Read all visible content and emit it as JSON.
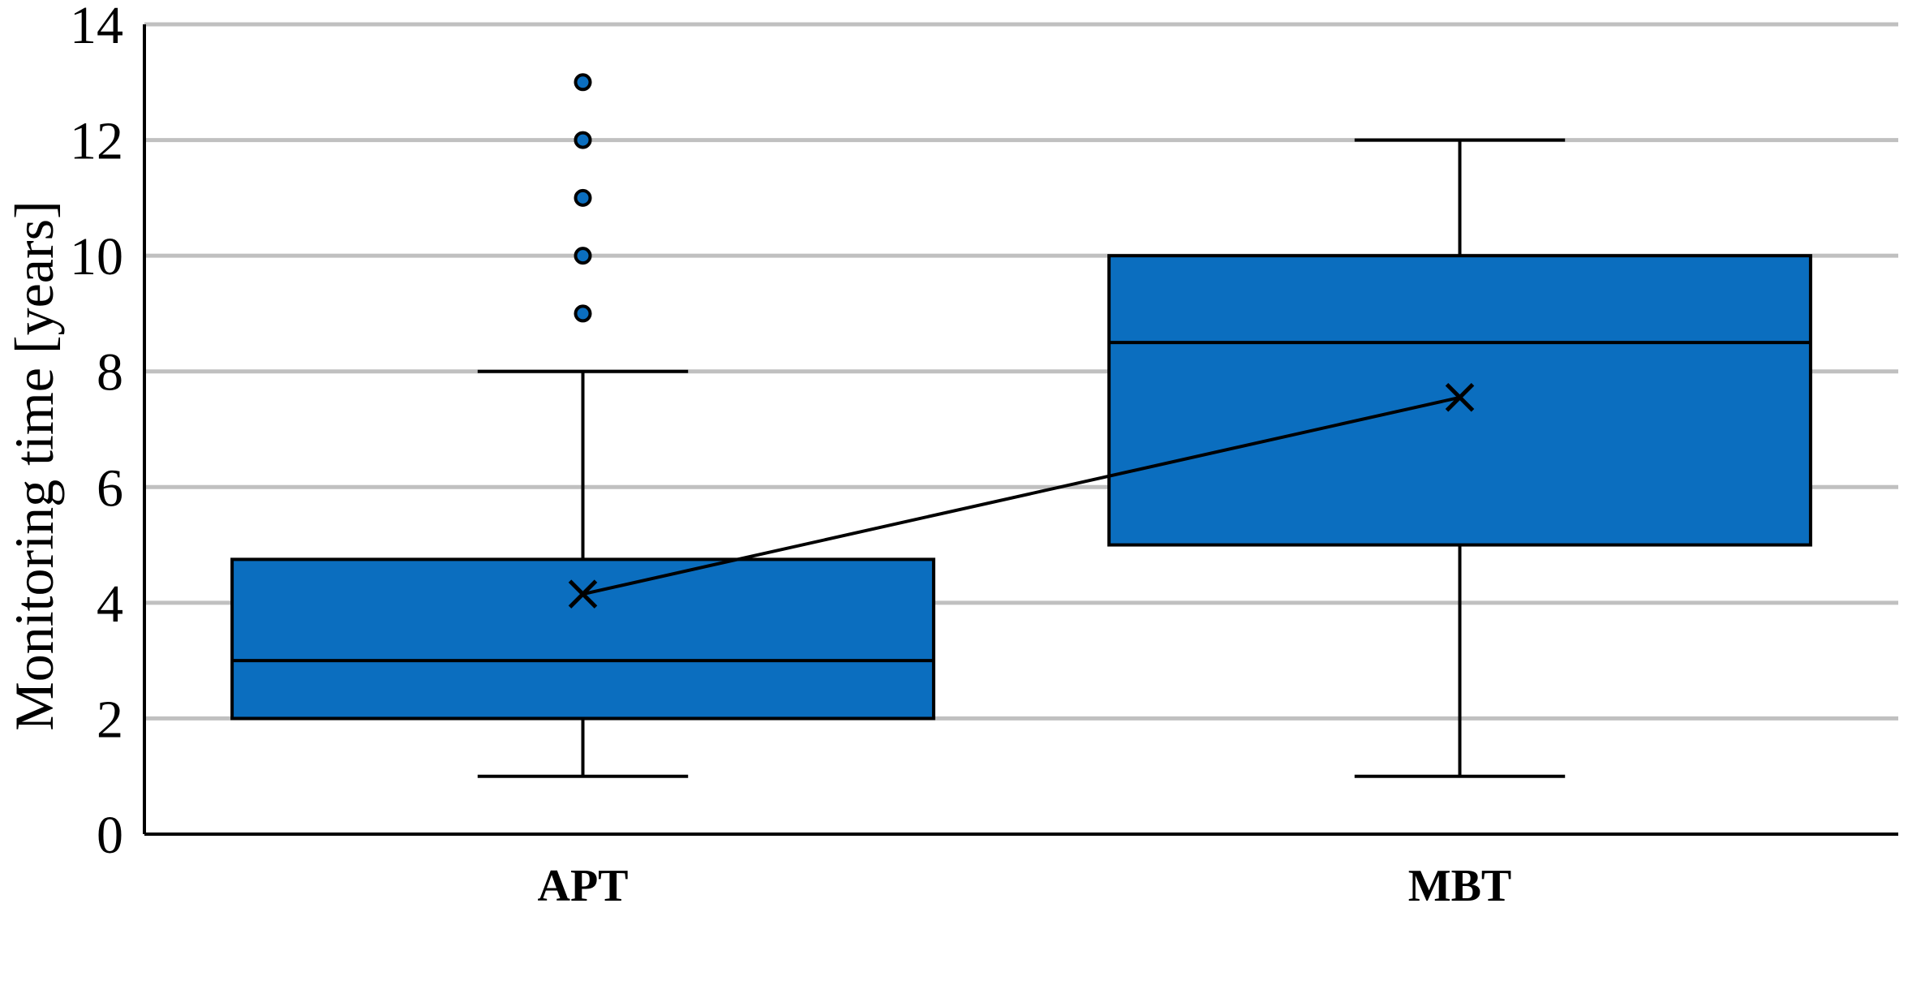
{
  "chart_data": {
    "type": "box",
    "ylabel": "Monitoring time [years]",
    "xlabel": "",
    "ylim": [
      0,
      14
    ],
    "yticks": [
      0,
      2,
      4,
      6,
      8,
      10,
      12,
      14
    ],
    "grid": true,
    "categories": [
      "APT",
      "MBT"
    ],
    "boxes": [
      {
        "category": "APT",
        "whisker_low": 1,
        "q1": 2,
        "median": 3,
        "q3": 4.75,
        "whisker_high": 8,
        "mean": 4.15,
        "outliers": [
          9,
          10,
          11,
          12,
          13
        ]
      },
      {
        "category": "MBT",
        "whisker_low": 1,
        "q1": 5,
        "median": 8.5,
        "q3": 10,
        "whisker_high": 12,
        "mean": 7.55,
        "outliers": []
      }
    ],
    "mean_line": true,
    "colors": {
      "box_fill": "#0b6ebf",
      "stroke": "#000000",
      "grid": "#c0c0c0",
      "outlier_fill": "#0b6ebf"
    }
  }
}
